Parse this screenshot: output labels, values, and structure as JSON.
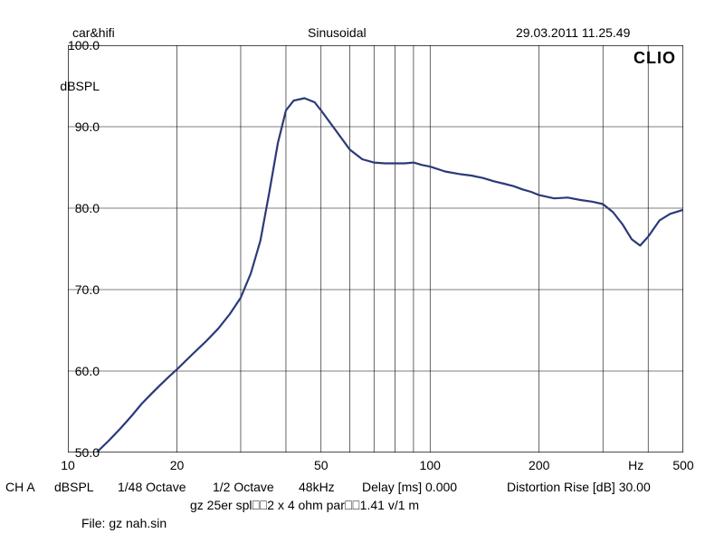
{
  "header": {
    "left": "car&hifi",
    "center": "Sinusoidal",
    "right": "29.03.2011 11.25.49"
  },
  "brand": "CLIO",
  "chart": {
    "type": "line",
    "background_color": "#ffffff",
    "border_color": "#000000",
    "grid_color": "#000000",
    "grid_width": 0.6,
    "line_color": "#2b3a78",
    "line_width": 2.2,
    "x_scale": "log",
    "xlim": [
      10,
      500
    ],
    "ylim": [
      50,
      100
    ],
    "x_ticks_major": [
      10,
      20,
      50,
      100,
      200,
      500
    ],
    "x_ticks_minor": [
      30,
      40,
      60,
      70,
      80,
      90,
      300,
      400
    ],
    "y_ticks": [
      50,
      60,
      70,
      80,
      90,
      100
    ],
    "x_tick_labels": [
      "10",
      "20",
      "50",
      "100",
      "200",
      "500"
    ],
    "y_tick_labels": [
      "50.0",
      "60.0",
      "70.0",
      "80.0",
      "90.0",
      "100.0"
    ],
    "y_axis_unit": "dBSPL",
    "x_axis_unit": "Hz",
    "label_fontsize": 14,
    "series": {
      "freq_hz": [
        12,
        13,
        14,
        15,
        16,
        17,
        18,
        19,
        20,
        22,
        24,
        26,
        28,
        30,
        32,
        34,
        36,
        38,
        40,
        42,
        45,
        48,
        50,
        55,
        60,
        65,
        70,
        75,
        80,
        85,
        90,
        95,
        100,
        110,
        120,
        130,
        140,
        150,
        160,
        170,
        180,
        190,
        200,
        220,
        240,
        260,
        280,
        300,
        320,
        340,
        360,
        380,
        400,
        430,
        460,
        500
      ],
      "db_spl": [
        50,
        51.5,
        53,
        54.5,
        56,
        57.2,
        58.3,
        59.3,
        60.2,
        62,
        63.6,
        65.2,
        67,
        69,
        72,
        76,
        82,
        88,
        92,
        93.2,
        93.5,
        93,
        92,
        89.5,
        87.2,
        86,
        85.6,
        85.5,
        85.5,
        85.5,
        85.6,
        85.3,
        85.1,
        84.5,
        84.2,
        84,
        83.7,
        83.3,
        83,
        82.7,
        82.3,
        82,
        81.6,
        81.2,
        81.3,
        81,
        80.8,
        80.5,
        79.5,
        78,
        76.2,
        75.4,
        76.5,
        78.5,
        79.3,
        79.8
      ]
    }
  },
  "footer": {
    "line1_parts": {
      "ch": "CH A",
      "unit": "dBSPL",
      "oct1": "1/48 Octave",
      "oct2": "1/2 Octave",
      "rate": "48kHz",
      "delay": "Delay [ms] 0.000",
      "dist": "Distortion Rise [dB] 30.00"
    },
    "line2": "gz 25er spl⎕⎕2 x 4 ohm par⎕⎕1.41 v/1 m",
    "line3": "File: gz nah.sin"
  }
}
